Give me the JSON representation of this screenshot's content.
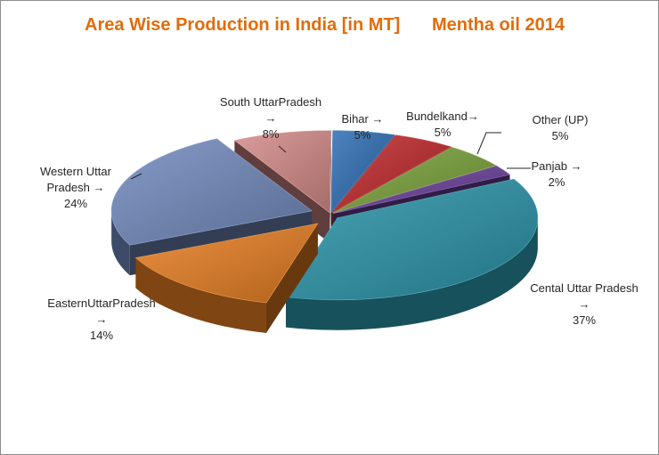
{
  "chart_data": {
    "type": "pie",
    "variant": "3d-exploded",
    "title": "Area Wise Production in India [in MT]",
    "subtitle": "Mentha oil 2014",
    "title_color": "#e36c09",
    "slices": [
      {
        "label_lines": [
          "Bihar →"
        ],
        "value_label": "5%",
        "value": 5,
        "color": "#2e6db4"
      },
      {
        "label_lines": [
          "Bundelkand→"
        ],
        "value_label": "5%",
        "value": 5,
        "color": "#c0282a"
      },
      {
        "label_lines": [
          "Other (UP)"
        ],
        "value_label": "5%",
        "value": 5,
        "color": "#7aa23a"
      },
      {
        "label_lines": [
          "Panjab →"
        ],
        "value_label": "2%",
        "value": 2,
        "color": "#6a3f9a"
      },
      {
        "label_lines": [
          "Cental Uttar Pradesh",
          "→"
        ],
        "value_label": "37%",
        "value": 37,
        "color": "#2a93a8"
      },
      {
        "label_lines": [
          "EasternUttarPradesh",
          "→"
        ],
        "value_label": "14%",
        "value": 14,
        "color": "#e67e22"
      },
      {
        "label_lines": [
          "Western Uttar",
          "Pradesh →"
        ],
        "value_label": "24%",
        "value": 24,
        "color": "#7189bd"
      },
      {
        "label_lines": [
          "South UttarPradesh",
          "→"
        ],
        "value_label": "8%",
        "value": 8,
        "color": "#d48a88"
      }
    ],
    "legend": "none",
    "data_labels": "outside with leader lines"
  }
}
